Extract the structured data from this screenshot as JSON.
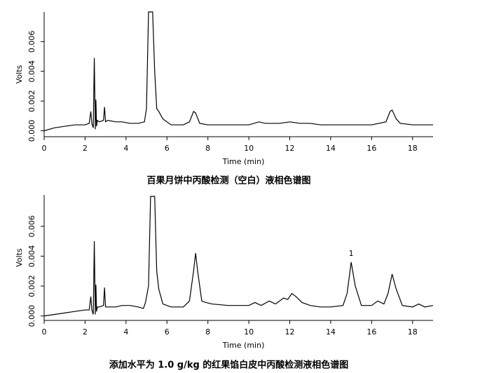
{
  "chart_data": [
    {
      "type": "line",
      "caption": "百果月饼中丙酸检测（空白）液相色谱图",
      "xlabel": "Time (min)",
      "ylabel": "Volts",
      "color": "#000000",
      "xlim": [
        0,
        19
      ],
      "ylim": [
        -0.0004,
        0.008
      ],
      "xticks": [
        0,
        2,
        4,
        6,
        8,
        10,
        12,
        14,
        16,
        18
      ],
      "yticks": [
        {
          "value": 0,
          "label": "0.000"
        },
        {
          "value": 0.002,
          "label": "0.002"
        },
        {
          "value": 0.004,
          "label": "0.004"
        },
        {
          "value": 0.006,
          "label": "0.006"
        }
      ],
      "x": [
        0,
        0.5,
        1,
        1.5,
        2,
        2.2,
        2.28,
        2.33,
        2.4,
        2.45,
        2.5,
        2.53,
        2.56,
        2.6,
        2.7,
        2.9,
        2.95,
        3.0,
        3.1,
        3.5,
        3.8,
        4.2,
        4.6,
        4.9,
        5.0,
        5.1,
        5.2,
        5.3,
        5.4,
        5.5,
        5.6,
        5.8,
        6.2,
        6.8,
        7.1,
        7.3,
        7.4,
        7.6,
        8.0,
        9,
        10,
        10.5,
        10.8,
        11.5,
        12,
        12.5,
        13,
        13.5,
        14,
        15,
        16,
        16.7,
        16.9,
        17.0,
        17.2,
        17.4,
        18,
        19
      ],
      "values": [
        0.0,
        0.0002,
        0.0003,
        0.0004,
        0.0004,
        0.0005,
        0.0013,
        0.0005,
        0.0002,
        0.0049,
        0.0001,
        0.0021,
        0.0003,
        0.0007,
        0.0006,
        0.0007,
        0.0016,
        0.0006,
        0.0007,
        0.0006,
        0.0006,
        0.0005,
        0.0005,
        0.0006,
        0.0015,
        0.008,
        0.008,
        0.008,
        0.004,
        0.0015,
        0.0013,
        0.0008,
        0.0004,
        0.0004,
        0.0006,
        0.0013,
        0.0012,
        0.0005,
        0.0004,
        0.0004,
        0.0004,
        0.0006,
        0.0005,
        0.0005,
        0.0006,
        0.0005,
        0.0005,
        0.0004,
        0.0004,
        0.0004,
        0.0004,
        0.0006,
        0.0013,
        0.0014,
        0.0008,
        0.0005,
        0.0004,
        0.0004
      ]
    },
    {
      "type": "line",
      "caption": "添加水平为 1.0 g/kg 的红果馅白皮中丙酸检测液相色谱图",
      "xlabel": "Time (min)",
      "ylabel": "Volts",
      "color": "#000000",
      "xlim": [
        0,
        19
      ],
      "ylim": [
        -0.0003,
        0.0081
      ],
      "xticks": [
        0,
        2,
        4,
        6,
        8,
        10,
        12,
        14,
        16,
        18
      ],
      "yticks": [
        {
          "value": 0,
          "label": "0.000"
        },
        {
          "value": 0.002,
          "label": "0.002"
        },
        {
          "value": 0.004,
          "label": "0.004"
        },
        {
          "value": 0.006,
          "label": "0.006"
        }
      ],
      "x": [
        0,
        0.5,
        1,
        1.5,
        2,
        2.2,
        2.28,
        2.33,
        2.4,
        2.45,
        2.5,
        2.53,
        2.56,
        2.6,
        2.7,
        2.9,
        2.95,
        3.0,
        3.1,
        3.5,
        3.8,
        4.2,
        4.6,
        4.85,
        4.95,
        5.1,
        5.2,
        5.3,
        5.4,
        5.5,
        5.6,
        5.8,
        6.2,
        6.8,
        7.1,
        7.3,
        7.4,
        7.5,
        7.7,
        7.9,
        8.2,
        9,
        10,
        10.3,
        10.6,
        11,
        11.3,
        11.7,
        11.9,
        12.1,
        12.3,
        12.6,
        13,
        13.5,
        14,
        14.6,
        14.8,
        15.0,
        15.2,
        15.5,
        16,
        16.3,
        16.6,
        16.8,
        17.0,
        17.2,
        17.5,
        18,
        18.3,
        18.6,
        19
      ],
      "values": [
        0.0,
        0.0001,
        0.0002,
        0.0003,
        0.0004,
        0.0004,
        0.0013,
        0.0004,
        0.0001,
        0.005,
        0.0001,
        0.0021,
        0.0003,
        0.0006,
        0.0006,
        0.0007,
        0.0019,
        0.0006,
        0.0006,
        0.0006,
        0.0007,
        0.0007,
        0.0006,
        0.0005,
        0.0009,
        0.002,
        0.008,
        0.008,
        0.008,
        0.003,
        0.0018,
        0.0008,
        0.0006,
        0.0006,
        0.001,
        0.003,
        0.0042,
        0.003,
        0.001,
        0.0009,
        0.0008,
        0.0007,
        0.0007,
        0.0009,
        0.0007,
        0.001,
        0.0008,
        0.0012,
        0.0011,
        0.0015,
        0.0013,
        0.0009,
        0.0007,
        0.0006,
        0.0006,
        0.0007,
        0.0015,
        0.0036,
        0.002,
        0.0007,
        0.0007,
        0.001,
        0.0008,
        0.0015,
        0.0028,
        0.0018,
        0.0007,
        0.0006,
        0.0008,
        0.0006,
        0.0007
      ],
      "annotations": [
        {
          "text": "1",
          "x": 15.0
        }
      ]
    }
  ]
}
